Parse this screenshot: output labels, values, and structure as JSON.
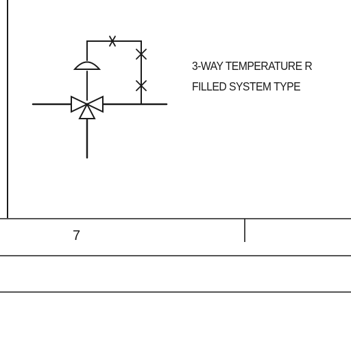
{
  "symbol": {
    "description_lines": [
      "3-WAY TEMPERATURE R",
      "FILLED SYSTEM TYPE"
    ],
    "icon": "three-way-valve-with-actuator-icon"
  },
  "table": {
    "row_number": "7"
  },
  "colors": {
    "ink": "#1a1a1a",
    "paper": "#ffffff"
  }
}
